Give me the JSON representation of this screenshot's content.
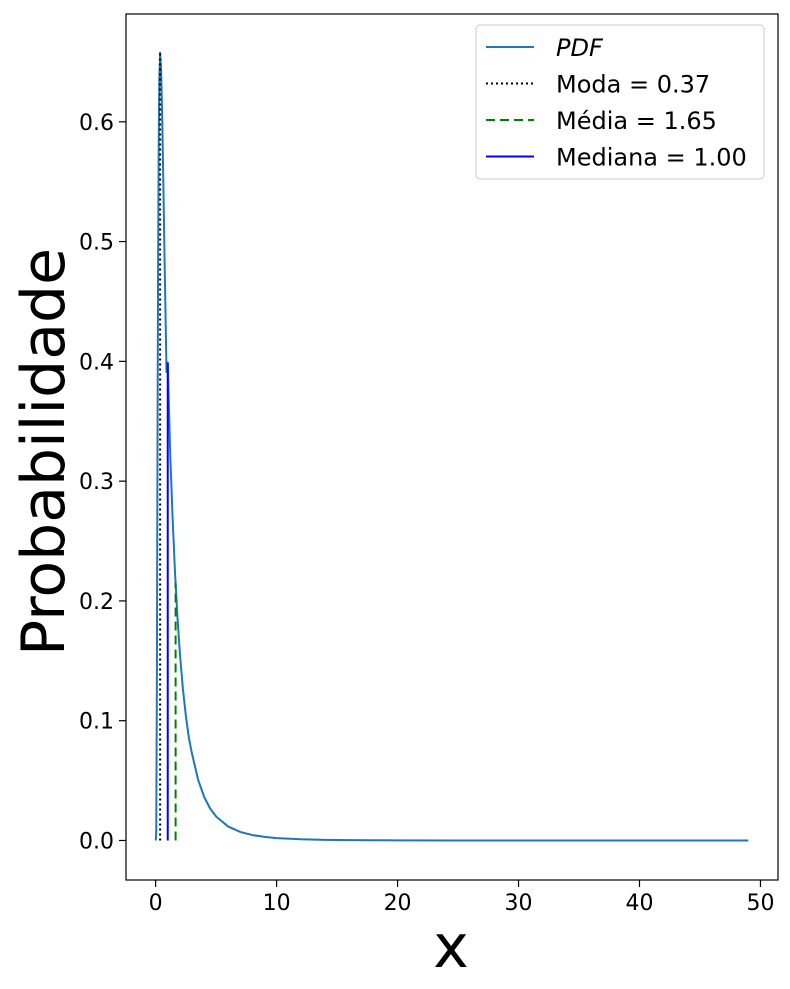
{
  "chart_data": {
    "type": "line",
    "title": "",
    "xlabel": "x",
    "ylabel": "Probabilidade",
    "xlim": [
      -2.45,
      51.45
    ],
    "ylim": [
      -0.033,
      0.69
    ],
    "xticks": [
      0,
      10,
      20,
      30,
      40,
      50
    ],
    "xtick_labels": [
      "0",
      "10",
      "20",
      "30",
      "40",
      "50"
    ],
    "yticks": [
      0.0,
      0.1,
      0.2,
      0.3,
      0.4,
      0.5,
      0.6
    ],
    "ytick_labels": [
      "0.0",
      "0.1",
      "0.2",
      "0.3",
      "0.4",
      "0.5",
      "0.6"
    ],
    "grid": false,
    "legend_position": "top-right",
    "series": [
      {
        "name": "PDF",
        "style": "solid",
        "color": "#1f77b4",
        "x": [
          0.01,
          0.05,
          0.1,
          0.15,
          0.2,
          0.25,
          0.3,
          0.37,
          0.45,
          0.55,
          0.65,
          0.75,
          0.9,
          1.0,
          1.2,
          1.4,
          1.6,
          1.8,
          2.0,
          2.25,
          2.5,
          2.75,
          3.0,
          3.5,
          4.0,
          4.5,
          5.0,
          6.0,
          7.0,
          8.0,
          9.0,
          10.0,
          12.0,
          14.0,
          16.0,
          18.0,
          20.0,
          25.0,
          30.0,
          35.0,
          40.0,
          45.0,
          49.0
        ],
        "y": [
          0.0,
          0.0073,
          0.1258,
          0.3125,
          0.4694,
          0.5747,
          0.6336,
          0.6577,
          0.6443,
          0.5999,
          0.5407,
          0.4782,
          0.3911,
          0.3989,
          0.3244,
          0.2697,
          0.2238,
          0.1871,
          0.1568,
          0.127,
          0.1039,
          0.0856,
          0.0727,
          0.0511,
          0.0366,
          0.0268,
          0.02,
          0.0116,
          0.0071,
          0.0045,
          0.003,
          0.002,
          0.001,
          0.0005,
          0.0003,
          0.0002,
          0.0001,
          0.0,
          0.0,
          0.0,
          0.0,
          0.0,
          0.0
        ]
      }
    ],
    "vlines": [
      {
        "name": "Moda = 0.37",
        "x": 0.37,
        "ymax": 0.6577,
        "style": "dotted",
        "color": "#000000"
      },
      {
        "name": "Média = 1.65",
        "x": 1.65,
        "ymax": 0.215,
        "style": "dashed",
        "color": "#008000"
      },
      {
        "name": "Mediana = 1.00",
        "x": 1.0,
        "ymax": 0.3989,
        "style": "solid",
        "color": "#0000ff"
      }
    ],
    "legend": [
      {
        "label": "PDF",
        "italic": true,
        "style": "solid",
        "color": "#1f77b4"
      },
      {
        "label": "Moda = 0.37",
        "italic": false,
        "style": "dotted",
        "color": "#000000"
      },
      {
        "label": "Média = 1.65",
        "italic": false,
        "style": "dashed",
        "color": "#008000"
      },
      {
        "label": "Mediana = 1.00",
        "italic": false,
        "style": "solid",
        "color": "#0000ff"
      }
    ]
  }
}
